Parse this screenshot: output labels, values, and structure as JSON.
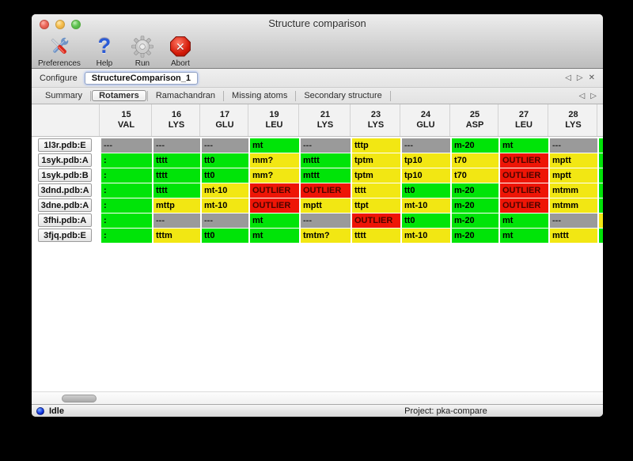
{
  "window": {
    "title": "Structure comparison"
  },
  "toolbar": {
    "items": [
      {
        "id": "preferences",
        "label": "Preferences",
        "icon": "tools-icon"
      },
      {
        "id": "help",
        "label": "Help",
        "icon": "question-icon"
      },
      {
        "id": "run",
        "label": "Run",
        "icon": "gear-icon"
      },
      {
        "id": "abort",
        "label": "Abort",
        "icon": "stop-icon"
      }
    ]
  },
  "configure": {
    "label": "Configure",
    "value": "StructureComparison_1"
  },
  "nav_icons": {
    "prev": "◁",
    "next": "▷",
    "close": "✕"
  },
  "tabs": {
    "selected": "Rotamers",
    "items": [
      "Summary",
      "Rotamers",
      "Ramachandran",
      "Missing atoms",
      "Secondary structure"
    ]
  },
  "table": {
    "columns": [
      [
        "15",
        "VAL"
      ],
      [
        "16",
        "LYS"
      ],
      [
        "17",
        "GLU"
      ],
      [
        "19",
        "LEU"
      ],
      [
        "21",
        "LYS"
      ],
      [
        "23",
        "LYS"
      ],
      [
        "24",
        "GLU"
      ],
      [
        "25",
        "ASP"
      ],
      [
        "27",
        "LEU"
      ],
      [
        "28",
        "LYS"
      ]
    ],
    "rows": [
      {
        "label": "1l3r.pdb:E",
        "sliver": "green",
        "cells": [
          [
            "---",
            "gray"
          ],
          [
            "---",
            "gray"
          ],
          [
            "---",
            "gray"
          ],
          [
            "mt",
            "green"
          ],
          [
            "---",
            "gray"
          ],
          [
            "tttp",
            "yellow"
          ],
          [
            "---",
            "gray"
          ],
          [
            "m-20",
            "green"
          ],
          [
            "mt",
            "green"
          ],
          [
            "---",
            "gray"
          ]
        ]
      },
      {
        "label": "1syk.pdb:A",
        "sliver": "green",
        "cells": [
          [
            ":",
            "green"
          ],
          [
            "tttt",
            "green"
          ],
          [
            "tt0",
            "green"
          ],
          [
            "mm?",
            "yellow"
          ],
          [
            "mttt",
            "green"
          ],
          [
            "tptm",
            "yellow"
          ],
          [
            "tp10",
            "yellow"
          ],
          [
            "t70",
            "yellow"
          ],
          [
            "OUTLIER",
            "red"
          ],
          [
            "mptt",
            "yellow"
          ]
        ]
      },
      {
        "label": "1syk.pdb:B",
        "sliver": "green",
        "cells": [
          [
            ":",
            "green"
          ],
          [
            "tttt",
            "green"
          ],
          [
            "tt0",
            "green"
          ],
          [
            "mm?",
            "yellow"
          ],
          [
            "mttt",
            "green"
          ],
          [
            "tptm",
            "yellow"
          ],
          [
            "tp10",
            "yellow"
          ],
          [
            "t70",
            "yellow"
          ],
          [
            "OUTLIER",
            "red"
          ],
          [
            "mptt",
            "yellow"
          ]
        ]
      },
      {
        "label": "3dnd.pdb:A",
        "sliver": "green",
        "cells": [
          [
            ":",
            "green"
          ],
          [
            "tttt",
            "green"
          ],
          [
            "mt-10",
            "yellow"
          ],
          [
            "OUTLIER",
            "red"
          ],
          [
            "OUTLIER",
            "red"
          ],
          [
            "tttt",
            "yellow"
          ],
          [
            "tt0",
            "green"
          ],
          [
            "m-20",
            "green"
          ],
          [
            "OUTLIER",
            "red"
          ],
          [
            "mtmm",
            "yellow"
          ]
        ]
      },
      {
        "label": "3dne.pdb:A",
        "sliver": "green",
        "cells": [
          [
            ":",
            "green"
          ],
          [
            "mttp",
            "yellow"
          ],
          [
            "mt-10",
            "yellow"
          ],
          [
            "OUTLIER",
            "red"
          ],
          [
            "mptt",
            "yellow"
          ],
          [
            "ttpt",
            "yellow"
          ],
          [
            "mt-10",
            "yellow"
          ],
          [
            "m-20",
            "green"
          ],
          [
            "OUTLIER",
            "red"
          ],
          [
            "mtmm",
            "yellow"
          ]
        ]
      },
      {
        "label": "3fhi.pdb:A",
        "sliver": "yellow",
        "cells": [
          [
            ":",
            "green"
          ],
          [
            "---",
            "gray"
          ],
          [
            "---",
            "gray"
          ],
          [
            "mt",
            "green"
          ],
          [
            "---",
            "gray"
          ],
          [
            "OUTLIER",
            "red"
          ],
          [
            "tt0",
            "green"
          ],
          [
            "m-20",
            "green"
          ],
          [
            "mt",
            "green"
          ],
          [
            "---",
            "gray"
          ]
        ]
      },
      {
        "label": "3fjq.pdb:E",
        "sliver": "green",
        "cells": [
          [
            ":",
            "green"
          ],
          [
            "tttm",
            "yellow"
          ],
          [
            "tt0",
            "green"
          ],
          [
            "mt",
            "green"
          ],
          [
            "tmtm?",
            "yellow"
          ],
          [
            "tttt",
            "yellow"
          ],
          [
            "mt-10",
            "yellow"
          ],
          [
            "m-20",
            "green"
          ],
          [
            "mt",
            "green"
          ],
          [
            "mttt",
            "yellow"
          ]
        ]
      }
    ]
  },
  "statusbar": {
    "status": "Idle",
    "project": "Project: pka-compare"
  },
  "colors": {
    "green": "#00e408",
    "yellow": "#f2e713",
    "red": "#ee1506",
    "gray": "#9a9a9a"
  }
}
